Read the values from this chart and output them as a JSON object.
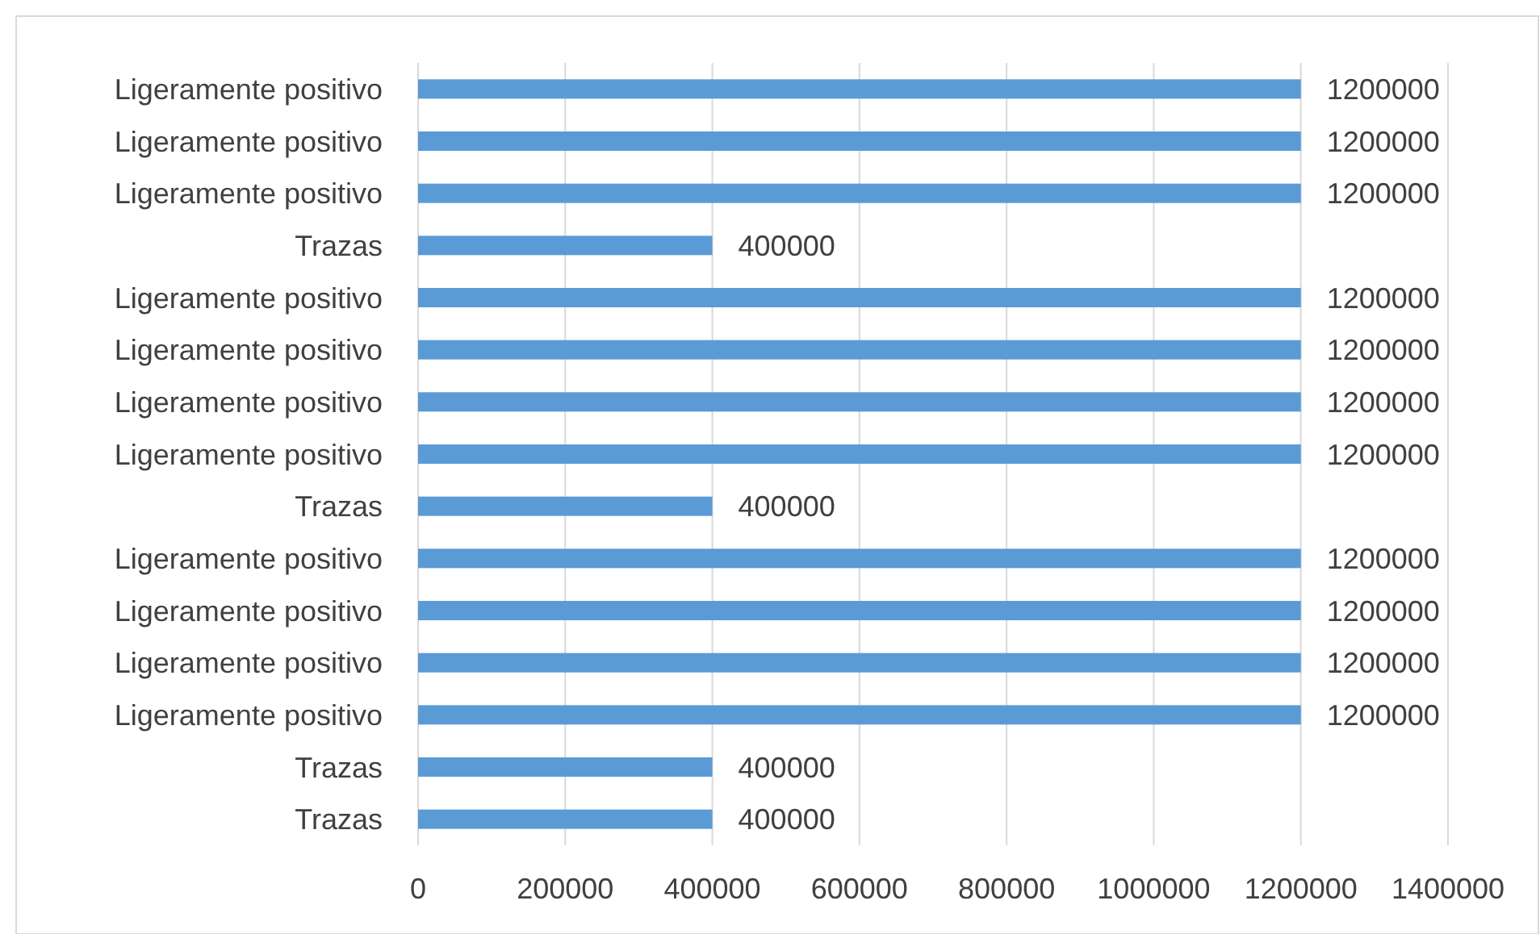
{
  "chart_data": {
    "type": "bar",
    "orientation": "horizontal",
    "categories": [
      "Ligeramente positivo",
      "Ligeramente positivo",
      "Ligeramente positivo",
      "Trazas",
      "Ligeramente positivo",
      "Ligeramente positivo",
      "Ligeramente positivo",
      "Ligeramente positivo",
      "Trazas",
      "Ligeramente positivo",
      "Ligeramente positivo",
      "Ligeramente positivo",
      "Ligeramente positivo",
      "Trazas",
      "Trazas"
    ],
    "values": [
      1200000,
      1200000,
      1200000,
      400000,
      1200000,
      1200000,
      1200000,
      1200000,
      400000,
      1200000,
      1200000,
      1200000,
      1200000,
      400000,
      400000
    ],
    "color": "#5b9bd5",
    "xlim": [
      0,
      1400000
    ],
    "xticks": [
      0,
      200000,
      400000,
      600000,
      800000,
      1000000,
      1200000,
      1400000
    ],
    "grid": "x",
    "data_labels": true
  }
}
